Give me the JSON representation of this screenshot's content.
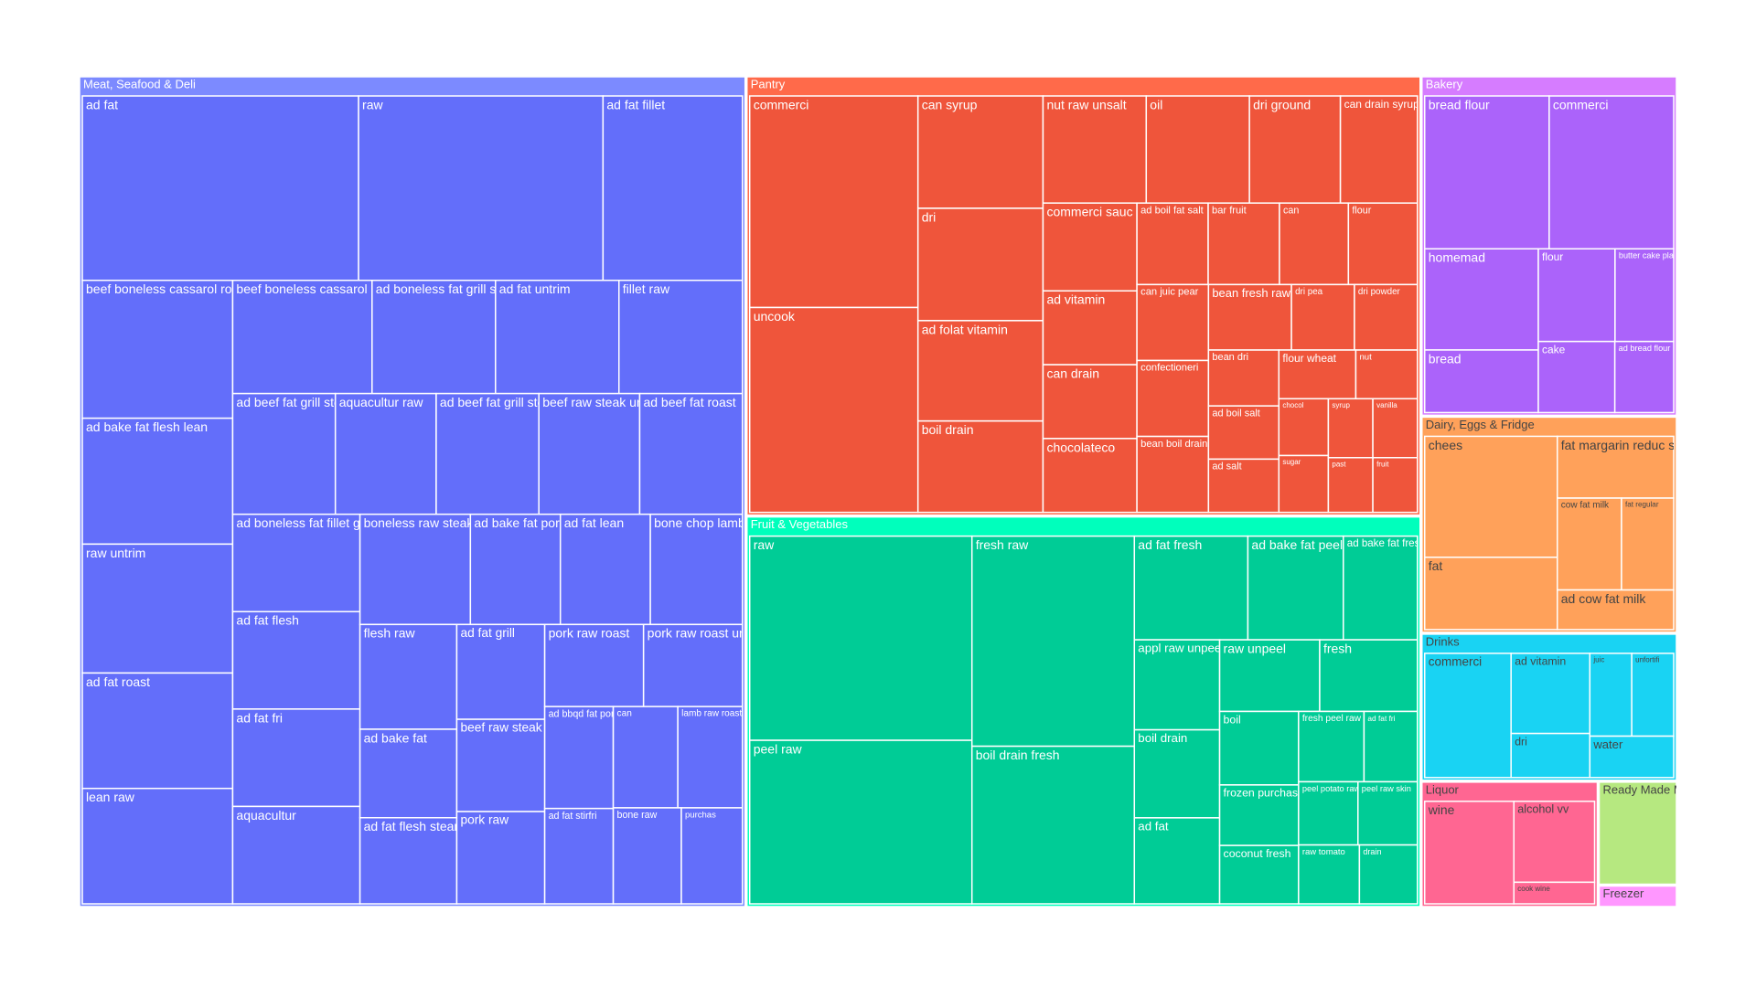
{
  "chart_data": {
    "type": "treemap",
    "groups": [
      {
        "name": "Meat, Seafood & Deli",
        "color": "#636efa",
        "value": 439,
        "labels": [
          "ad fat",
          "raw",
          "ad fat fillet",
          "beef boneless cassarol roast",
          "ad bake fat flesh lean",
          "raw untrim",
          "ad fat roast",
          "lean raw",
          "beef boneless cassarol meat raw",
          "ad boneless fat grill steak",
          "ad fat untrim",
          "fillet raw",
          "ad beef fat grill steak",
          "aquacultur raw",
          "ad beef fat grill steak untrim",
          "beef raw steak untrim",
          "ad beef fat roast",
          "ad boneless fat fillet grill",
          "ad fat flesh",
          "ad fat fri",
          "aquacultur",
          "boneless raw steak",
          "ad bake fat pork roast",
          "ad fat lean",
          "bone chop lamb raw",
          "flesh raw",
          "ad bake fat",
          "ad fat flesh steam",
          "ad fat grill",
          "beef raw steak",
          "pork raw",
          "pork raw roast",
          "pork raw roast untrim",
          "ad bbqd fat pork",
          "ad fat stirfri",
          "can",
          "lamb raw roast",
          "bone raw",
          "purchas"
        ],
        "values": [
          22.6,
          20,
          11.4,
          9.2,
          8.4,
          8.6,
          7.7,
          7.7,
          7,
          6.2,
          6.2,
          6.2,
          5.5,
          5.4,
          5.5,
          5.4,
          5.5,
          5.5,
          5.5,
          5.5,
          5.5,
          5.4,
          4.4,
          4.4,
          4.5,
          4.5,
          3.8,
          3.7,
          3.7,
          3.6,
          3.6,
          3.6,
          3.6,
          3.1,
          2.9,
          2.9,
          2.9,
          2.9,
          2.6
        ]
      },
      {
        "name": "Pantry",
        "color": "#EF553B",
        "value": 235,
        "labels": [
          "commerci",
          "uncook",
          "can syrup",
          "dri",
          "ad folat vitamin",
          "boil drain",
          "nut raw unsalt",
          "oil",
          "dri ground",
          "can drain syrup",
          "commerci sauc",
          "ad vitamin",
          "can drain",
          "chocolateco",
          "ad boil fat salt",
          "bar fruit",
          "can",
          "flour",
          "can juic pear",
          "confectioneri",
          "bean boil drain",
          "bean fresh raw",
          "dri pea",
          "dri powder",
          "bean dri",
          "ad boil salt",
          "ad salt",
          "flour wheat",
          "nut",
          "chocol",
          "sugar",
          "syrup",
          "vanilla",
          "past",
          "fruit"
        ],
        "values": [
          19,
          18.4,
          7.5,
          7.5,
          6.7,
          6.1,
          5.9,
          5.9,
          5.2,
          4.4,
          4.4,
          3.7,
          3.7,
          3.7,
          3.1,
          3.1,
          3,
          3,
          2.9,
          2.9,
          2.9,
          2.9,
          2.2,
          2.2,
          2.1,
          2,
          2,
          2,
          1.6,
          1.5,
          1.5,
          1.4,
          1.4,
          1.3,
          1.3
        ]
      },
      {
        "name": "Fruit & Vegetables",
        "color": "#00cc96",
        "value": 209,
        "labels": [
          "raw",
          "peel raw",
          "fresh raw",
          "boil drain fresh",
          "ad fat fresh",
          "ad bake fat peel potato",
          "ad bake fat fresh peel",
          "appl raw unpeel",
          "boil drain",
          "ad fat",
          "raw unpeel",
          "fresh",
          "boil",
          "frozen purchas",
          "coconut fresh",
          "fresh peel raw",
          "ad fat fri",
          "peel potato raw",
          "peel raw skin",
          "raw tomato",
          "drain"
        ],
        "values": [
          26.6,
          21.3,
          20,
          15,
          6.9,
          5.8,
          4.5,
          4.5,
          4.4,
          4.3,
          4.2,
          4.1,
          3.4,
          2.8,
          2.7,
          2.7,
          2.2,
          2.2,
          2.2,
          2.1,
          2
        ]
      },
      {
        "name": "Bakery",
        "color": "#ab63fa",
        "value": 69,
        "labels": [
          "bread flour",
          "commerci",
          "homemad",
          "bread",
          "flour",
          "butter cake plain",
          "cake",
          "ad bread flour"
        ],
        "values": [
          9.1,
          9.1,
          5.5,
          3.4,
          3.4,
          2.6,
          2.6,
          2
        ]
      },
      {
        "name": "Dairy, Eggs & Fridge",
        "color": "#FFA15A",
        "value": 44,
        "labels": [
          "chees",
          "fat",
          "fat margarin reduc spread",
          "cow fat milk",
          "fat regular",
          "ad cow fat milk"
        ],
        "values": [
          8.7,
          5.2,
          3.9,
          3.2,
          2.6,
          2.5
        ]
      },
      {
        "name": "Drinks",
        "color": "#19d3f3",
        "value": 30,
        "labels": [
          "commerci",
          "ad vitamin",
          "dri",
          "juic",
          "unfortifi",
          "water"
        ],
        "values": [
          3.4,
          2,
          1.1,
          1.1,
          1.1,
          1.1
        ]
      },
      {
        "name": "Liquor",
        "color": "#FF6692",
        "value": 17.7,
        "labels": [
          "wine",
          "alcohol vv",
          "cook wine"
        ],
        "values": [
          6.3,
          4.5,
          1.2
        ]
      },
      {
        "name": "Ready Made Meals",
        "color": "#B6E880",
        "value": 6.5
      },
      {
        "name": "Freezer",
        "color": "#FF97FF",
        "value": 1.4
      }
    ]
  }
}
